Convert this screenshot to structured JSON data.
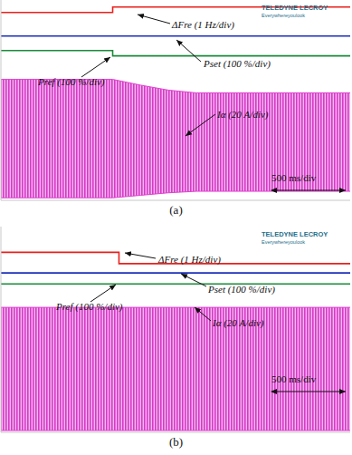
{
  "chart_data": [
    {
      "type": "line",
      "title": "(a)",
      "xlim": [
        0,
        5
      ],
      "ylim": [
        0,
        8
      ],
      "tick_labels": false,
      "grid": false,
      "logo": [
        "TELEDYNE LECROY",
        "Everywhereyoulook"
      ],
      "annotations": [
        "ΔFre (1 Hz/div)",
        "Pset (100 %/div)",
        "Pref (100 %/div)",
        "Iα (20 A/div)",
        "500 ms/div"
      ],
      "series": [
        {
          "name": "ΔFre",
          "color": "#e8211c",
          "type": "line",
          "x": [
            0,
            1.6,
            1.6,
            5
          ],
          "values": [
            7.5,
            7.5,
            7.72,
            7.72
          ]
        },
        {
          "name": "Pset",
          "color": "#1d2fb8",
          "type": "line",
          "x": [
            0,
            5
          ],
          "values": [
            6.56,
            6.56
          ]
        },
        {
          "name": "Pref",
          "color": "#1a8a3a",
          "type": "line",
          "x": [
            0,
            1.6,
            1.6,
            5
          ],
          "values": [
            5.98,
            5.98,
            5.77,
            5.77
          ]
        },
        {
          "name": "Iα",
          "color": "#e040d0",
          "type": "band",
          "x": [
            0,
            1.6,
            2.0,
            2.4,
            2.8,
            5
          ],
          "values": [
            [
              0.1,
              4.83
            ],
            [
              0.1,
              4.83
            ],
            [
              0.2,
              4.6
            ],
            [
              0.3,
              4.4
            ],
            [
              0.36,
              4.29
            ],
            [
              0.36,
              4.29
            ]
          ]
        }
      ]
    },
    {
      "type": "line",
      "title": "(b)",
      "xlim": [
        0,
        5
      ],
      "ylim": [
        0,
        8
      ],
      "tick_labels": false,
      "grid": false,
      "logo": [
        "TELEDYNE LECROY",
        "Everywhereyoulook"
      ],
      "annotations": [
        "ΔFre (1 Hz/div)",
        "Pset (100 %/div)",
        "Pref (100 %/div)",
        "Iα (20 A/div)",
        "500 ms/div"
      ],
      "series": [
        {
          "name": "ΔFre",
          "color": "#e8211c",
          "type": "line",
          "x": [
            0,
            1.69,
            1.69,
            5
          ],
          "values": [
            7.0,
            7.0,
            6.56,
            6.56
          ]
        },
        {
          "name": "Pset",
          "color": "#1d2fb8",
          "type": "line",
          "x": [
            0,
            5
          ],
          "values": [
            6.2,
            6.2
          ]
        },
        {
          "name": "Pref",
          "color": "#1a8a3a",
          "type": "line",
          "x": [
            0,
            5
          ],
          "values": [
            5.77,
            5.77
          ]
        },
        {
          "name": "Iα",
          "color": "#e040d0",
          "type": "band",
          "x": [
            0,
            5
          ],
          "values": [
            [
              0.07,
              4.86
            ],
            [
              0.07,
              4.86
            ]
          ]
        }
      ]
    }
  ]
}
